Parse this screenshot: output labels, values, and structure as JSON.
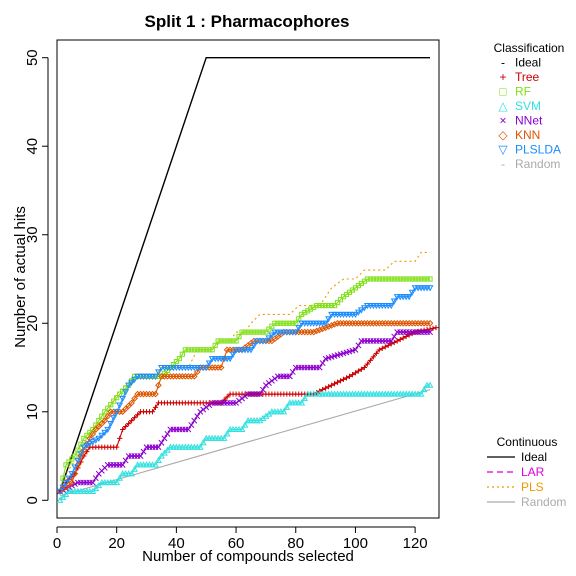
{
  "chart_data": {
    "type": "line",
    "title": "Split 1 : Pharmacophores",
    "xlabel": "Number of compounds selected",
    "ylabel": "Number of actual hits",
    "xlim": [
      0,
      128
    ],
    "ylim": [
      -2,
      52
    ],
    "xticks": [
      "0",
      "20",
      "40",
      "60",
      "80",
      "100",
      "120"
    ],
    "yticks": [
      "0",
      "10",
      "20",
      "30",
      "40",
      "50"
    ],
    "grid": false,
    "legends": [
      {
        "title": "Classification",
        "placement": "top-right",
        "entries": [
          {
            "label": "Ideal",
            "color": "#000000",
            "symbol": "-"
          },
          {
            "label": "Tree",
            "color": "#cc0000",
            "symbol": "+"
          },
          {
            "label": "RF",
            "color": "#80e01a",
            "symbol": "□"
          },
          {
            "label": "SVM",
            "color": "#33e0e0",
            "symbol": "△"
          },
          {
            "label": "NNet",
            "color": "#8800cc",
            "symbol": "×"
          },
          {
            "label": "KNN",
            "color": "#dd5500",
            "symbol": "◇"
          },
          {
            "label": "PLSLDA",
            "color": "#1a8cff",
            "symbol": "▽"
          },
          {
            "label": "Random",
            "color": "#aaaaaa",
            "symbol": "-"
          }
        ]
      },
      {
        "title": "Continuous",
        "placement": "bottom-right",
        "entries": [
          {
            "label": "Ideal",
            "color": "#000000",
            "dash": "solid"
          },
          {
            "label": "LAR",
            "color": "#dd00dd",
            "dash": "dashed"
          },
          {
            "label": "PLS",
            "color": "#ee9900",
            "dash": "dotted"
          },
          {
            "label": "Random",
            "color": "#aaaaaa",
            "dash": "solid"
          }
        ]
      }
    ],
    "series": [
      {
        "name": "Ideal",
        "color": "#000000",
        "dash": "solid",
        "marker": "none",
        "points": [
          [
            1,
            1
          ],
          [
            50,
            50
          ],
          [
            125,
            50
          ]
        ]
      },
      {
        "name": "Random",
        "color": "#aaaaaa",
        "dash": "solid",
        "marker": "none",
        "points": [
          [
            1,
            0.5
          ],
          [
            125,
            12.5
          ]
        ]
      },
      {
        "name": "Tree",
        "color": "#cc0000",
        "dash": "solid",
        "marker": "plus",
        "points": [
          [
            1,
            1
          ],
          [
            3,
            2
          ],
          [
            6,
            3
          ],
          [
            9,
            5
          ],
          [
            11,
            6
          ],
          [
            20,
            6
          ],
          [
            22,
            8
          ],
          [
            28,
            10
          ],
          [
            32,
            10
          ],
          [
            34,
            11
          ],
          [
            55,
            11
          ],
          [
            58,
            12
          ],
          [
            86,
            12
          ],
          [
            92,
            13
          ],
          [
            98,
            14
          ],
          [
            103,
            15
          ],
          [
            108,
            17
          ],
          [
            114,
            18
          ],
          [
            120,
            19
          ],
          [
            127,
            19.5
          ]
        ]
      },
      {
        "name": "RF",
        "color": "#80e01a",
        "dash": "solid",
        "marker": "square",
        "points": [
          [
            1,
            1
          ],
          [
            3,
            4
          ],
          [
            6,
            5
          ],
          [
            9,
            7
          ],
          [
            12,
            8
          ],
          [
            16,
            10
          ],
          [
            21,
            12
          ],
          [
            24,
            13
          ],
          [
            26,
            14
          ],
          [
            35,
            14
          ],
          [
            38,
            15
          ],
          [
            41,
            16
          ],
          [
            43,
            17
          ],
          [
            52,
            17
          ],
          [
            54,
            18
          ],
          [
            60,
            18
          ],
          [
            62,
            19
          ],
          [
            70,
            19
          ],
          [
            73,
            20
          ],
          [
            80,
            20
          ],
          [
            82,
            21
          ],
          [
            87,
            22
          ],
          [
            93,
            22
          ],
          [
            96,
            23
          ],
          [
            100,
            24
          ],
          [
            104,
            25
          ],
          [
            118,
            25
          ],
          [
            125,
            25
          ]
        ]
      },
      {
        "name": "SVM",
        "color": "#33e0e0",
        "dash": "solid",
        "marker": "triangle",
        "points": [
          [
            1,
            0
          ],
          [
            4,
            1
          ],
          [
            12,
            1
          ],
          [
            15,
            2
          ],
          [
            20,
            2
          ],
          [
            22,
            3
          ],
          [
            25,
            3
          ],
          [
            27,
            4
          ],
          [
            33,
            4
          ],
          [
            35,
            5
          ],
          [
            38,
            6
          ],
          [
            48,
            6
          ],
          [
            50,
            7
          ],
          [
            56,
            7
          ],
          [
            58,
            8
          ],
          [
            62,
            8
          ],
          [
            64,
            9
          ],
          [
            68,
            9
          ],
          [
            72,
            10
          ],
          [
            76,
            10
          ],
          [
            78,
            11
          ],
          [
            82,
            11
          ],
          [
            84,
            12
          ],
          [
            92,
            12
          ],
          [
            122,
            12
          ],
          [
            124,
            13
          ],
          [
            125,
            13
          ]
        ]
      },
      {
        "name": "NNet",
        "color": "#8800cc",
        "dash": "solid",
        "marker": "x",
        "points": [
          [
            1,
            1
          ],
          [
            7,
            2
          ],
          [
            12,
            2
          ],
          [
            14,
            3
          ],
          [
            17,
            4
          ],
          [
            22,
            4
          ],
          [
            24,
            5
          ],
          [
            28,
            5
          ],
          [
            30,
            6
          ],
          [
            34,
            6
          ],
          [
            36,
            7
          ],
          [
            38,
            8
          ],
          [
            44,
            8
          ],
          [
            46,
            9
          ],
          [
            48,
            10
          ],
          [
            52,
            11
          ],
          [
            60,
            11
          ],
          [
            64,
            12
          ],
          [
            68,
            12
          ],
          [
            70,
            13
          ],
          [
            74,
            14
          ],
          [
            78,
            14
          ],
          [
            80,
            15
          ],
          [
            88,
            15
          ],
          [
            90,
            16
          ],
          [
            100,
            17
          ],
          [
            102,
            18
          ],
          [
            112,
            18
          ],
          [
            114,
            19
          ],
          [
            125,
            19
          ]
        ]
      },
      {
        "name": "KNN",
        "color": "#dd5500",
        "dash": "solid",
        "marker": "diamond",
        "points": [
          [
            1,
            1
          ],
          [
            5,
            2
          ],
          [
            8,
            5
          ],
          [
            11,
            7
          ],
          [
            13,
            8
          ],
          [
            16,
            9
          ],
          [
            18,
            10
          ],
          [
            22,
            10
          ],
          [
            25,
            11
          ],
          [
            27,
            12
          ],
          [
            33,
            12
          ],
          [
            35,
            14
          ],
          [
            46,
            14
          ],
          [
            48,
            15
          ],
          [
            55,
            15
          ],
          [
            57,
            17
          ],
          [
            62,
            17
          ],
          [
            66,
            18
          ],
          [
            72,
            18
          ],
          [
            76,
            19
          ],
          [
            86,
            19
          ],
          [
            94,
            20
          ],
          [
            125,
            20
          ]
        ]
      },
      {
        "name": "PLSLDA",
        "color": "#1a8cff",
        "dash": "solid",
        "marker": "triangle-down",
        "points": [
          [
            1,
            1
          ],
          [
            5,
            3
          ],
          [
            9,
            6
          ],
          [
            14,
            7
          ],
          [
            17,
            8
          ],
          [
            20,
            10
          ],
          [
            24,
            13
          ],
          [
            27,
            14
          ],
          [
            33,
            14
          ],
          [
            35,
            15
          ],
          [
            50,
            15
          ],
          [
            52,
            16
          ],
          [
            58,
            16
          ],
          [
            60,
            17
          ],
          [
            65,
            17
          ],
          [
            67,
            18
          ],
          [
            70,
            18
          ],
          [
            73,
            19
          ],
          [
            80,
            19
          ],
          [
            82,
            20
          ],
          [
            90,
            20
          ],
          [
            92,
            21
          ],
          [
            100,
            21
          ],
          [
            104,
            22
          ],
          [
            112,
            22
          ],
          [
            114,
            23
          ],
          [
            118,
            23
          ],
          [
            120,
            24
          ],
          [
            125,
            24
          ]
        ]
      },
      {
        "name": "LAR",
        "color": "#dd00dd",
        "dash": "dashed",
        "marker": "none",
        "points": [
          [
            1,
            1
          ],
          [
            6,
            2
          ],
          [
            12,
            2
          ],
          [
            14,
            3
          ],
          [
            17,
            4
          ],
          [
            22,
            4
          ],
          [
            24,
            5
          ],
          [
            28,
            5
          ],
          [
            30,
            6
          ],
          [
            34,
            6
          ],
          [
            36,
            7
          ],
          [
            38,
            8
          ],
          [
            44,
            8
          ],
          [
            46,
            9
          ],
          [
            48,
            10
          ],
          [
            52,
            11
          ],
          [
            60,
            11
          ],
          [
            64,
            12
          ],
          [
            68,
            12
          ],
          [
            70,
            13
          ],
          [
            74,
            14
          ],
          [
            78,
            14
          ],
          [
            80,
            15
          ],
          [
            88,
            15
          ],
          [
            90,
            16
          ],
          [
            100,
            17
          ],
          [
            102,
            18
          ],
          [
            112,
            18
          ],
          [
            114,
            19
          ],
          [
            125,
            19
          ]
        ]
      },
      {
        "name": "PLS",
        "color": "#ee9900",
        "dash": "dotted",
        "marker": "none",
        "points": [
          [
            1,
            1
          ],
          [
            3,
            3
          ],
          [
            7,
            5
          ],
          [
            10,
            7
          ],
          [
            14,
            8
          ],
          [
            17,
            10
          ],
          [
            20,
            12
          ],
          [
            23,
            13
          ],
          [
            26,
            14
          ],
          [
            33,
            14
          ],
          [
            35,
            15
          ],
          [
            44,
            15
          ],
          [
            47,
            17
          ],
          [
            52,
            17
          ],
          [
            55,
            18
          ],
          [
            58,
            18
          ],
          [
            60,
            19
          ],
          [
            63,
            19
          ],
          [
            65,
            20
          ],
          [
            68,
            21
          ],
          [
            78,
            21
          ],
          [
            81,
            22
          ],
          [
            88,
            22
          ],
          [
            92,
            24
          ],
          [
            96,
            25
          ],
          [
            100,
            25
          ],
          [
            103,
            26
          ],
          [
            110,
            26
          ],
          [
            113,
            27
          ],
          [
            120,
            27
          ],
          [
            122,
            28
          ],
          [
            125,
            28
          ]
        ]
      }
    ]
  }
}
